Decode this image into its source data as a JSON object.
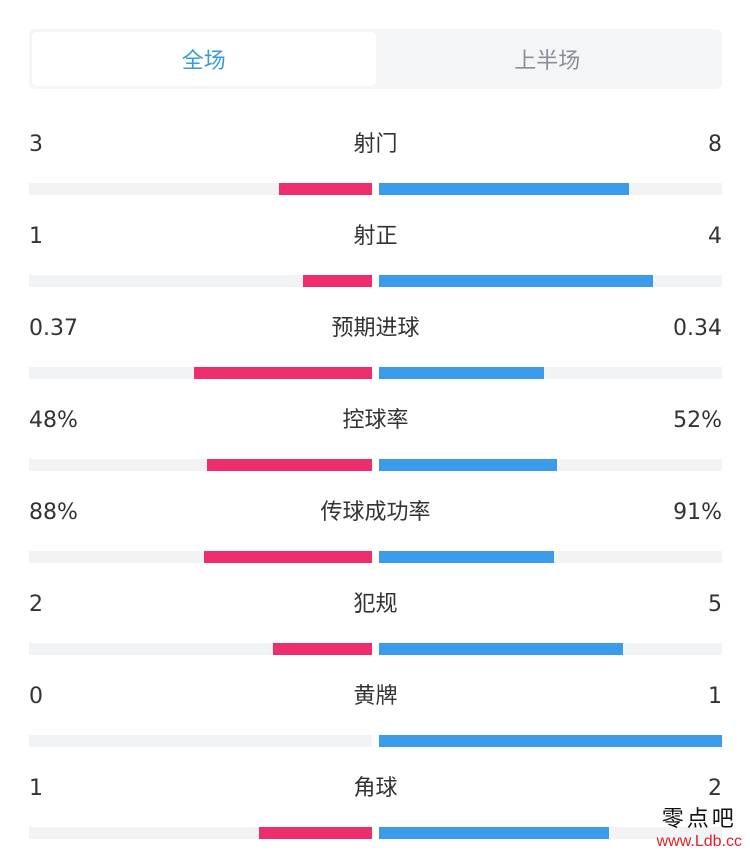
{
  "tabs": [
    {
      "label": "全场",
      "active": true
    },
    {
      "label": "上半场",
      "active": false
    }
  ],
  "colors": {
    "home": "#ee2d6c",
    "away": "#3a9bea",
    "track": "#f2f3f5",
    "active_tab": "#3a9bdc"
  },
  "stats": [
    {
      "label": "射门",
      "left": "3",
      "right": "8",
      "left_ratio": 0.27,
      "right_ratio": 0.73
    },
    {
      "label": "射正",
      "left": "1",
      "right": "4",
      "left_ratio": 0.2,
      "right_ratio": 0.8
    },
    {
      "label": "预期进球",
      "left": "0.37",
      "right": "0.34",
      "left_ratio": 0.52,
      "right_ratio": 0.48
    },
    {
      "label": "控球率",
      "left": "48%",
      "right": "52%",
      "left_ratio": 0.48,
      "right_ratio": 0.52
    },
    {
      "label": "传球成功率",
      "left": "88%",
      "right": "91%",
      "left_ratio": 0.49,
      "right_ratio": 0.51
    },
    {
      "label": "犯规",
      "left": "2",
      "right": "5",
      "left_ratio": 0.29,
      "right_ratio": 0.71
    },
    {
      "label": "黄牌",
      "left": "0",
      "right": "1",
      "left_ratio": 0.0,
      "right_ratio": 1.0
    },
    {
      "label": "角球",
      "left": "1",
      "right": "2",
      "left_ratio": 0.33,
      "right_ratio": 0.67
    }
  ],
  "watermark": {
    "name": "零点吧",
    "url": "www.Ldb.cc"
  }
}
